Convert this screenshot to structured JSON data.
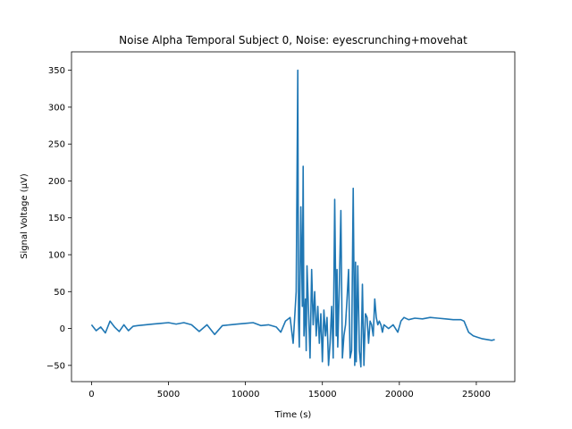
{
  "chart_data": {
    "type": "line",
    "title": "Noise Alpha Temporal Subject 0, Noise: eyescrunching+movehat",
    "xlabel": "Time (s)",
    "ylabel": "Signal Voltage (μV)",
    "xlim": [
      -1300,
      27500
    ],
    "ylim": [
      -72,
      375
    ],
    "xticks": [
      0,
      5000,
      10000,
      15000,
      20000,
      25000
    ],
    "yticks": [
      -50,
      0,
      50,
      100,
      150,
      200,
      250,
      300,
      350
    ],
    "grid": false,
    "series": [
      {
        "color": "#1f77b4",
        "x": [
          0,
          300,
          600,
          900,
          1200,
          1500,
          1800,
          2100,
          2400,
          2700,
          3000,
          3500,
          4000,
          4500,
          5000,
          5500,
          6000,
          6500,
          7000,
          7500,
          8000,
          8500,
          9000,
          9500,
          10000,
          10500,
          11000,
          11500,
          12000,
          12300,
          12600,
          12900,
          13100,
          13300,
          13400,
          13450,
          13500,
          13600,
          13700,
          13750,
          13800,
          13900,
          13950,
          14000,
          14100,
          14200,
          14300,
          14400,
          14500,
          14600,
          14700,
          14800,
          14900,
          15000,
          15100,
          15200,
          15300,
          15400,
          15500,
          15600,
          15700,
          15800,
          15900,
          15950,
          16000,
          16100,
          16200,
          16300,
          16400,
          16500,
          16600,
          16700,
          16800,
          16900,
          17000,
          17100,
          17150,
          17200,
          17300,
          17400,
          17500,
          17600,
          17700,
          17800,
          17900,
          18000,
          18100,
          18200,
          18300,
          18400,
          18500,
          18600,
          18700,
          18800,
          18900,
          19000,
          19300,
          19600,
          19900,
          20100,
          20300,
          20600,
          21000,
          21500,
          22000,
          22500,
          23000,
          23500,
          24000,
          24200,
          24500,
          24800,
          25100,
          25400,
          25700,
          26000,
          26200
        ],
        "y": [
          5,
          -3,
          2,
          -6,
          10,
          2,
          -4,
          5,
          -3,
          3,
          4,
          5,
          6,
          7,
          8,
          6,
          8,
          5,
          -4,
          5,
          -8,
          4,
          5,
          6,
          7,
          8,
          4,
          5,
          2,
          -5,
          10,
          15,
          -20,
          50,
          350,
          10,
          -25,
          165,
          30,
          220,
          -10,
          40,
          -30,
          85,
          25,
          -40,
          80,
          5,
          50,
          -10,
          30,
          -20,
          20,
          -45,
          25,
          -10,
          15,
          -50,
          -20,
          30,
          -40,
          175,
          -10,
          80,
          -25,
          60,
          160,
          -40,
          -10,
          5,
          40,
          80,
          -40,
          -30,
          190,
          -50,
          90,
          -45,
          85,
          -30,
          -52,
          60,
          -50,
          20,
          15,
          -20,
          10,
          5,
          -10,
          40,
          15,
          5,
          10,
          5,
          -5,
          5,
          0,
          5,
          -5,
          10,
          15,
          12,
          14,
          13,
          15,
          14,
          13,
          12,
          12,
          10,
          -5,
          -10,
          -12,
          -14,
          -15,
          -16,
          -15
        ]
      }
    ]
  }
}
